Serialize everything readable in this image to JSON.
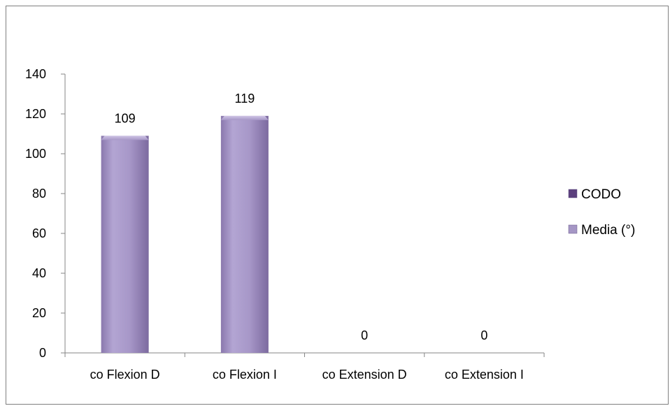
{
  "chart_data": {
    "type": "bar",
    "categories": [
      "co Flexion D",
      "co Flexion I",
      "co Extension D",
      "co Extension I"
    ],
    "series": [
      {
        "name": "CODO",
        "values": [
          null,
          null,
          null,
          null
        ],
        "color": "#5b3f7d"
      },
      {
        "name": "Media (°)",
        "values": [
          109,
          119,
          0,
          0
        ],
        "color": "#a596c5"
      }
    ],
    "data_labels": [
      "109",
      "119",
      "0",
      "0"
    ],
    "y_ticks": [
      "0",
      "20",
      "40",
      "60",
      "80",
      "100",
      "120",
      "140"
    ],
    "ylim": [
      0,
      140
    ],
    "legend_position": "right",
    "grid": false
  }
}
